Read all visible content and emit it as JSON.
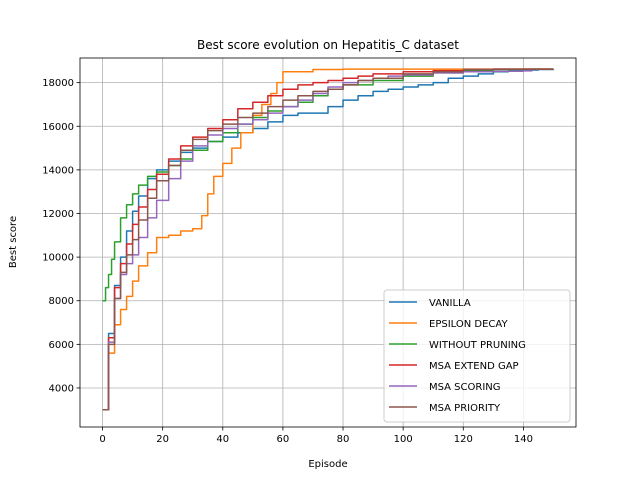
{
  "chart_data": {
    "type": "line",
    "title": "Best score evolution on Hepatitis_C dataset",
    "xlabel": "Episode",
    "ylabel": "Best score",
    "xlim": [
      -7.5,
      157.5
    ],
    "ylim": [
      2210,
      19130
    ],
    "xticks": [
      0,
      20,
      40,
      60,
      80,
      100,
      120,
      140
    ],
    "yticks": [
      4000,
      6000,
      8000,
      10000,
      12000,
      14000,
      16000,
      18000
    ],
    "grid": true,
    "legend_position": "lower-right",
    "series": [
      {
        "name": "VANILLA",
        "color": "#1f77b4",
        "x": [
          0,
          2,
          4,
          6,
          8,
          10,
          12,
          15,
          18,
          22,
          26,
          30,
          35,
          40,
          45,
          50,
          55,
          60,
          65,
          70,
          75,
          80,
          85,
          90,
          95,
          100,
          105,
          110,
          115,
          120,
          125,
          130,
          135,
          140,
          145,
          150
        ],
        "y": [
          3000,
          6500,
          8700,
          10000,
          11200,
          12100,
          12800,
          13600,
          14000,
          14400,
          14800,
          15000,
          15300,
          15500,
          15700,
          15900,
          16200,
          16500,
          16600,
          16600,
          16900,
          17200,
          17400,
          17600,
          17700,
          17800,
          17900,
          18000,
          18200,
          18300,
          18400,
          18500,
          18550,
          18580,
          18600,
          18620
        ]
      },
      {
        "name": "EPSILON DECAY",
        "color": "#ff7f0e",
        "x": [
          0,
          2,
          4,
          6,
          8,
          10,
          12,
          15,
          18,
          22,
          26,
          30,
          33,
          35,
          37,
          40,
          43,
          46,
          50,
          53,
          56,
          58,
          60,
          65,
          70,
          80,
          90,
          100,
          110,
          120,
          130,
          140,
          150
        ],
        "y": [
          3000,
          5600,
          6900,
          7600,
          8200,
          8900,
          9600,
          10200,
          10900,
          11000,
          11200,
          11300,
          11900,
          12900,
          13700,
          14300,
          15000,
          15700,
          16500,
          17000,
          17500,
          18000,
          18500,
          18500,
          18600,
          18620,
          18620,
          18620,
          18620,
          18620,
          18620,
          18620,
          18620
        ]
      },
      {
        "name": "WITHOUT PRUNING",
        "color": "#2ca02c",
        "x": [
          0,
          1,
          2,
          3,
          4,
          6,
          8,
          10,
          12,
          15,
          18,
          22,
          26,
          30,
          35,
          40,
          45,
          50,
          55,
          60,
          65,
          70,
          75,
          80,
          90,
          100,
          110,
          120,
          130,
          140,
          150
        ],
        "y": [
          8000,
          8600,
          9200,
          9900,
          10700,
          11800,
          12400,
          12900,
          13300,
          13700,
          13900,
          14200,
          14500,
          14900,
          15300,
          15700,
          16100,
          16400,
          16700,
          16900,
          17100,
          17400,
          17700,
          17900,
          18100,
          18300,
          18450,
          18550,
          18600,
          18620,
          18620
        ]
      },
      {
        "name": "MSA EXTEND GAP",
        "color": "#d62728",
        "x": [
          0,
          2,
          4,
          6,
          8,
          10,
          12,
          15,
          18,
          22,
          26,
          30,
          35,
          40,
          45,
          50,
          55,
          60,
          65,
          70,
          75,
          80,
          85,
          90,
          100,
          110,
          120,
          130,
          140,
          150
        ],
        "y": [
          3000,
          6300,
          8600,
          9700,
          10600,
          11500,
          12300,
          13100,
          13800,
          14500,
          15100,
          15500,
          15900,
          16300,
          16800,
          17100,
          17400,
          17700,
          17900,
          18000,
          18100,
          18200,
          18300,
          18400,
          18500,
          18550,
          18600,
          18620,
          18620,
          18620
        ]
      },
      {
        "name": "MSA SCORING",
        "color": "#9467bd",
        "x": [
          0,
          2,
          4,
          6,
          8,
          10,
          12,
          15,
          18,
          22,
          26,
          30,
          35,
          40,
          45,
          50,
          55,
          60,
          65,
          70,
          75,
          80,
          85,
          90,
          95,
          100,
          110,
          120,
          130,
          140,
          143
        ],
        "y": [
          3000,
          6100,
          8100,
          9200,
          9700,
          10100,
          10900,
          11800,
          12600,
          13600,
          14400,
          15100,
          15600,
          15900,
          16100,
          16300,
          16600,
          16900,
          17200,
          17500,
          17800,
          18000,
          18100,
          18200,
          18300,
          18350,
          18450,
          18500,
          18520,
          18540,
          18540
        ]
      },
      {
        "name": "MSA PRIORITY",
        "color": "#8c564b",
        "x": [
          0,
          2,
          4,
          6,
          8,
          10,
          12,
          15,
          18,
          22,
          26,
          30,
          35,
          40,
          45,
          50,
          55,
          60,
          65,
          70,
          75,
          80,
          85,
          90,
          100,
          110,
          120,
          130,
          140,
          150
        ],
        "y": [
          3000,
          6000,
          8100,
          9300,
          10100,
          10800,
          11700,
          12700,
          13500,
          14200,
          14900,
          15400,
          15800,
          16100,
          16400,
          16600,
          16900,
          17200,
          17400,
          17600,
          17700,
          17900,
          18100,
          18200,
          18400,
          18500,
          18600,
          18620,
          18620,
          18620
        ]
      }
    ]
  }
}
